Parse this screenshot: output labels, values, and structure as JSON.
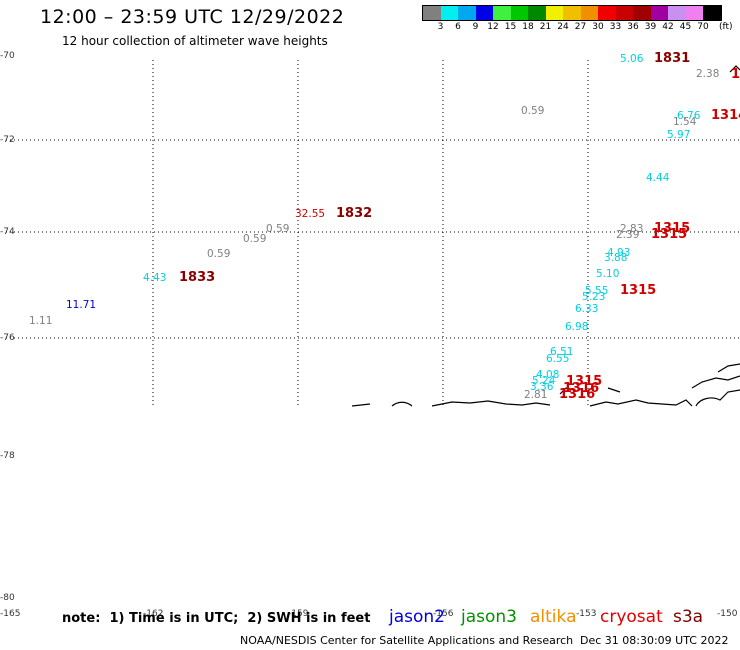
{
  "title": "12:00 – 23:59 UTC 12/29/2022",
  "subtitle": "12 hour collection of altimeter wave heights",
  "scale": {
    "colors": [
      "#808080",
      "#00f0f0",
      "#00a8f0",
      "#0000e8",
      "#40f040",
      "#00c800",
      "#008800",
      "#f0f000",
      "#f0c000",
      "#f09000",
      "#f00000",
      "#c80000",
      "#a00000",
      "#a000a0",
      "#c890f0",
      "#f080f0",
      "#000000"
    ],
    "labels": [
      "3",
      "6",
      "9",
      "12",
      "15",
      "18",
      "21",
      "24",
      "27",
      "30",
      "33",
      "36",
      "39",
      "42",
      "45",
      "70"
    ],
    "unit": "(ft)"
  },
  "axes": {
    "lat_labels": [
      "-70",
      "-72",
      "-74",
      "-76",
      "-78",
      "-80"
    ],
    "lon_labels": [
      "-165",
      "-162",
      "-159",
      "-156",
      "-153",
      "-150"
    ]
  },
  "observations": [
    {
      "text": "5.06",
      "color": "#00d0e0"
    },
    {
      "text": "2.38",
      "color": "#808080"
    },
    {
      "text": "0.59",
      "color": "#808080"
    },
    {
      "text": "6.76",
      "color": "#00d0e0"
    },
    {
      "text": "1.54",
      "color": "#808080"
    },
    {
      "text": "5.97",
      "color": "#00d0e0"
    },
    {
      "text": "4.44",
      "color": "#00d0e0"
    },
    {
      "text": "32.55",
      "color": "#d00000"
    },
    {
      "text": "0.59",
      "color": "#808080"
    },
    {
      "text": "0.59",
      "color": "#808080"
    },
    {
      "text": "0.59",
      "color": "#808080"
    },
    {
      "text": "2.83",
      "color": "#808080"
    },
    {
      "text": "2.39",
      "color": "#808080"
    },
    {
      "text": "4.93",
      "color": "#00d0e0"
    },
    {
      "text": "3.88",
      "color": "#00d0e0"
    },
    {
      "text": "5.10",
      "color": "#00d0e0"
    },
    {
      "text": "4.43",
      "color": "#00d0e0"
    },
    {
      "text": "5.55",
      "color": "#00d0e0"
    },
    {
      "text": "5.23",
      "color": "#00d0e0"
    },
    {
      "text": "11.71",
      "color": "#0000d0"
    },
    {
      "text": "6.33",
      "color": "#00d0e0"
    },
    {
      "text": "1.11",
      "color": "#808080"
    },
    {
      "text": "6.98",
      "color": "#00d0e0"
    },
    {
      "text": "6.51",
      "color": "#00d0e0"
    },
    {
      "text": "6.55",
      "color": "#00d0e0"
    },
    {
      "text": "4.08",
      "color": "#00d0e0"
    },
    {
      "text": "5.24",
      "color": "#00d0e0"
    },
    {
      "text": "3.36",
      "color": "#00d0e0"
    },
    {
      "text": "2.81",
      "color": "#808080"
    }
  ],
  "passes": [
    {
      "text": "1831",
      "color": "#880000"
    },
    {
      "text": "1314",
      "color": "#d00000"
    },
    {
      "text": "1832",
      "color": "#880000"
    },
    {
      "text": "1315",
      "color": "#d00000"
    },
    {
      "text": "1315",
      "color": "#d00000"
    },
    {
      "text": "1833",
      "color": "#880000"
    },
    {
      "text": "1315",
      "color": "#d00000"
    },
    {
      "text": "1315",
      "color": "#d00000"
    },
    {
      "text": "1316",
      "color": "#d00000"
    },
    {
      "text": "1316",
      "color": "#d00000"
    },
    {
      "text": "1",
      "color": "#d00000"
    }
  ],
  "note": "note:  1) Time is in UTC;  2) SWH is in feet",
  "legend": [
    {
      "text": "jason2",
      "color": "#0000e0"
    },
    {
      "text": "jason3",
      "color": "#009000"
    },
    {
      "text": "altika",
      "color": "#f09000"
    },
    {
      "text": "cryosat",
      "color": "#e00000"
    },
    {
      "text": "s3a",
      "color": "#800000"
    }
  ],
  "footer": {
    "credit": "NOAA/NESDIS Center for Satellite Applications and Research",
    "timestamp": "Dec 31 08:30:09 UTC 2022"
  }
}
